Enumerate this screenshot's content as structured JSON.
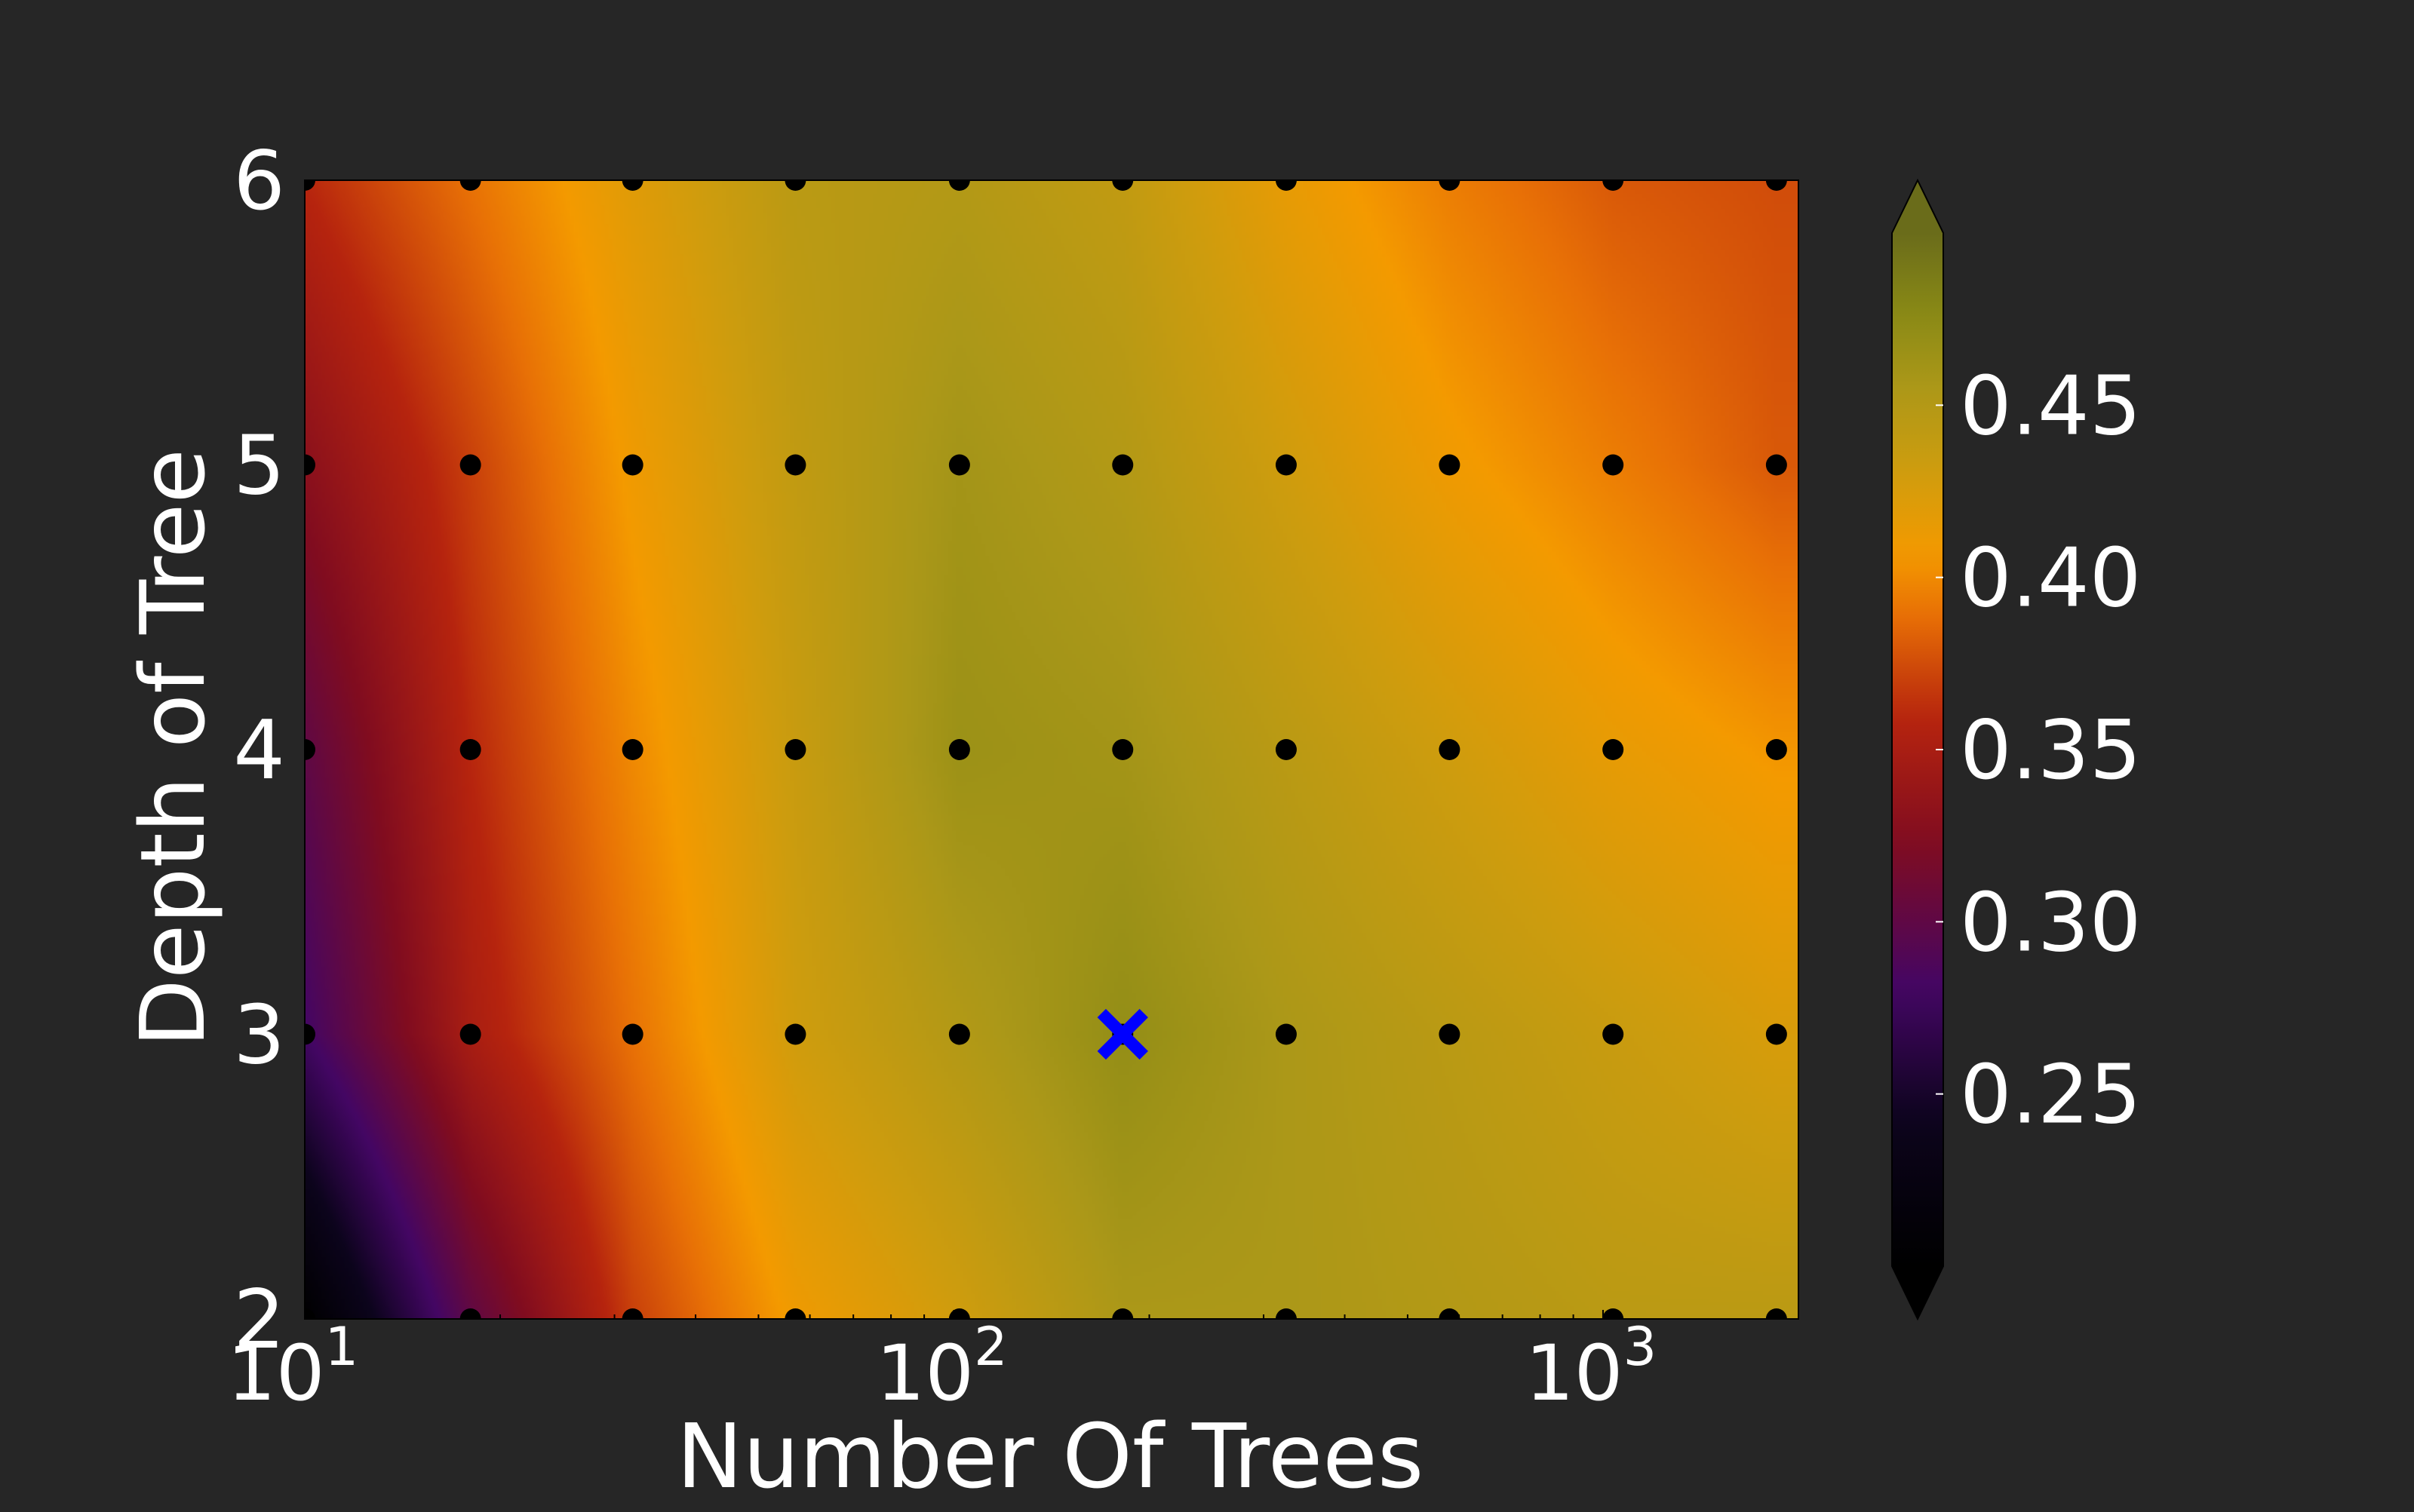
{
  "chart_data": {
    "type": "heatmap",
    "title": "",
    "xlabel": "Number Of Trees",
    "ylabel": "Depth of Tree",
    "xscale": "log",
    "xlim": [
      10,
      2000
    ],
    "ylim": [
      2,
      6
    ],
    "x_ticks": [
      {
        "value": 10,
        "base": "10",
        "exp": "1"
      },
      {
        "value": 100,
        "base": "10",
        "exp": "2"
      },
      {
        "value": 1000,
        "base": "10",
        "exp": "3"
      }
    ],
    "y_ticks": [
      "2",
      "3",
      "4",
      "5",
      "6"
    ],
    "x": [
      10,
      18,
      32,
      57,
      102,
      182,
      325,
      580,
      1036,
      1850
    ],
    "y": [
      2,
      3,
      4,
      5,
      6
    ],
    "z": [
      [
        0.2,
        0.3,
        0.37,
        0.41,
        0.43,
        0.455,
        0.455,
        0.45,
        0.445,
        0.445
      ],
      [
        0.28,
        0.35,
        0.39,
        0.43,
        0.45,
        0.47,
        0.455,
        0.445,
        0.435,
        0.425
      ],
      [
        0.3,
        0.36,
        0.4,
        0.435,
        0.465,
        0.46,
        0.445,
        0.43,
        0.415,
        0.405
      ],
      [
        0.33,
        0.37,
        0.41,
        0.44,
        0.46,
        0.45,
        0.43,
        0.41,
        0.395,
        0.38
      ],
      [
        0.36,
        0.39,
        0.42,
        0.445,
        0.45,
        0.44,
        0.415,
        0.395,
        0.38,
        0.375
      ]
    ],
    "best_point": {
      "x": 182,
      "y": 3,
      "marker": "x",
      "color": "#0000ff"
    },
    "colorbar": {
      "min": 0.2,
      "max": 0.5,
      "ticks": [
        "0.25",
        "0.30",
        "0.35",
        "0.40",
        "0.45"
      ],
      "extend": "both",
      "colormap": "black-purple-red-orange-olive"
    },
    "grid": false,
    "background_color": "#262626",
    "text_color": "#ffffff"
  }
}
